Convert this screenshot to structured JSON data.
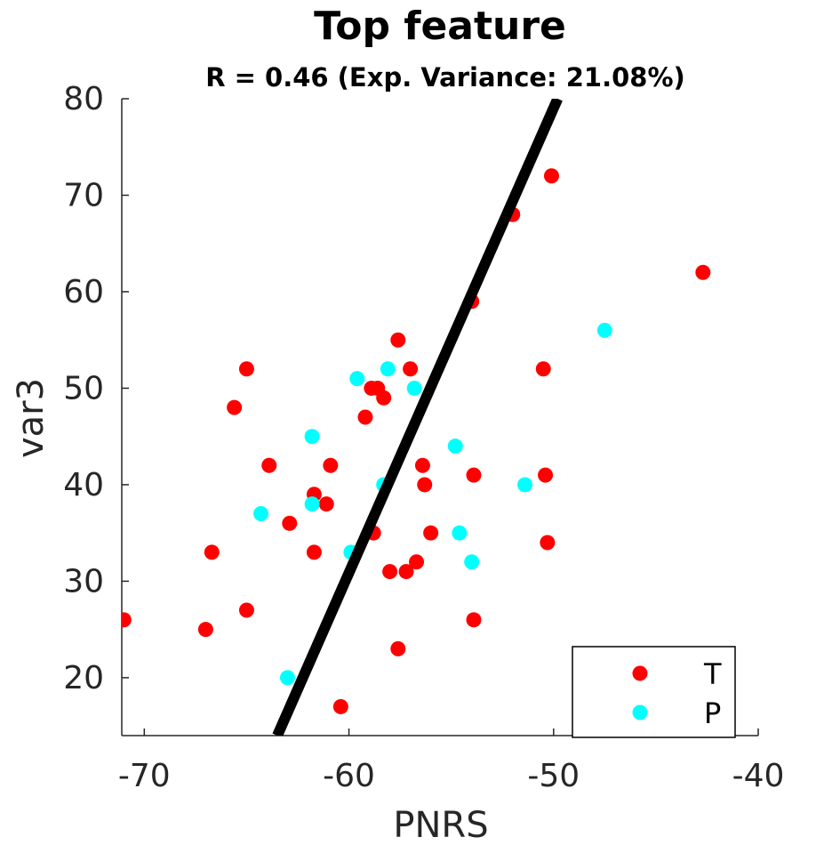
{
  "chart_data": {
    "type": "scatter",
    "title": "Top feature",
    "subtitle": "R = 0.46 (Exp. Variance: 21.08%)",
    "xlabel": "PNRS",
    "ylabel": "var3",
    "xlim": [
      -71.1,
      -40
    ],
    "ylim": [
      14,
      80
    ],
    "xticks": [
      -70,
      -60,
      -50,
      -40
    ],
    "yticks": [
      20,
      30,
      40,
      50,
      60,
      70,
      80
    ],
    "grid": false,
    "legend_position": "bottom-right",
    "series": [
      {
        "name": "T",
        "color": "#ff0000",
        "points": [
          [
            -71,
            26
          ],
          [
            -67,
            25
          ],
          [
            -66.7,
            33
          ],
          [
            -65.6,
            48
          ],
          [
            -65,
            52
          ],
          [
            -65,
            27
          ],
          [
            -63.9,
            42
          ],
          [
            -62.9,
            36
          ],
          [
            -61.7,
            39
          ],
          [
            -61.7,
            33
          ],
          [
            -61.1,
            38
          ],
          [
            -60.9,
            42
          ],
          [
            -60.4,
            17
          ],
          [
            -59.2,
            47
          ],
          [
            -58.9,
            50
          ],
          [
            -58.8,
            35
          ],
          [
            -58.6,
            50
          ],
          [
            -58.3,
            49
          ],
          [
            -58,
            31
          ],
          [
            -57.6,
            55
          ],
          [
            -57.6,
            23
          ],
          [
            -57.2,
            31
          ],
          [
            -57,
            52
          ],
          [
            -56.7,
            32
          ],
          [
            -56.4,
            42
          ],
          [
            -56.3,
            40
          ],
          [
            -56,
            35
          ],
          [
            -54,
            59
          ],
          [
            -53.9,
            41
          ],
          [
            -53.9,
            26
          ],
          [
            -52,
            68
          ],
          [
            -50.5,
            52
          ],
          [
            -50.4,
            41
          ],
          [
            -50.3,
            34
          ],
          [
            -50.1,
            72
          ],
          [
            -42.7,
            62
          ]
        ]
      },
      {
        "name": "P",
        "color": "#00ffff",
        "points": [
          [
            -64.3,
            37
          ],
          [
            -63,
            20
          ],
          [
            -61.8,
            45
          ],
          [
            -61.8,
            38
          ],
          [
            -59.9,
            33
          ],
          [
            -59.6,
            51
          ],
          [
            -58.3,
            40
          ],
          [
            -58.1,
            52
          ],
          [
            -56.8,
            50
          ],
          [
            -54.8,
            44
          ],
          [
            -54.6,
            35
          ],
          [
            -54,
            32
          ],
          [
            -51.4,
            40
          ],
          [
            -47.5,
            56
          ]
        ]
      }
    ],
    "fit_line": {
      "color": "#000000",
      "points": [
        [
          -63.5,
          14
        ],
        [
          -49.8,
          80
        ]
      ]
    }
  }
}
